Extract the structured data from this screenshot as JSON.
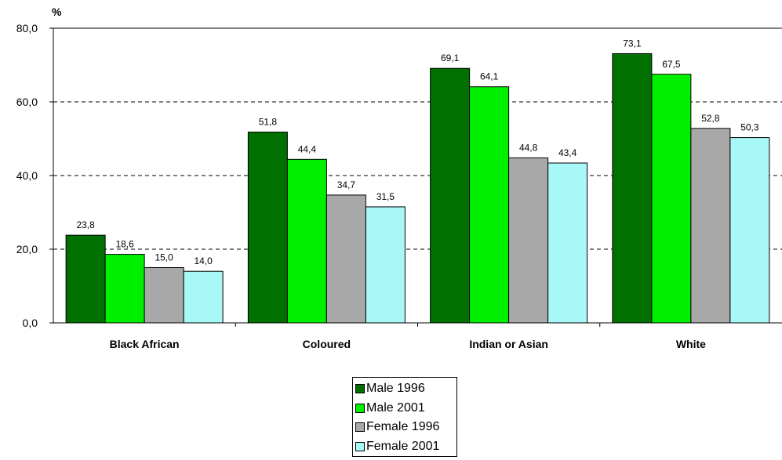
{
  "chart_data": {
    "type": "bar",
    "unit_label": "%",
    "categories": [
      "Black African",
      "Coloured",
      "Indian or Asian",
      "White"
    ],
    "series": [
      {
        "name": "Male 1996",
        "color": "#007000",
        "values": [
          23.8,
          51.8,
          69.1,
          73.1
        ],
        "labels": [
          "23,8",
          "51,8",
          "69,1",
          "73,1"
        ]
      },
      {
        "name": "Male 2001",
        "color": "#00f000",
        "values": [
          18.6,
          44.4,
          64.1,
          67.5
        ],
        "labels": [
          "18,6",
          "44,4",
          "64,1",
          "67,5"
        ]
      },
      {
        "name": "Female 1996",
        "color": "#a8a8a8",
        "values": [
          15.0,
          34.7,
          44.8,
          52.8
        ],
        "labels": [
          "15,0",
          "34,7",
          "44,8",
          "52,8"
        ]
      },
      {
        "name": "Female 2001",
        "color": "#a8f8f8",
        "values": [
          14.0,
          31.5,
          43.4,
          50.3
        ],
        "labels": [
          "14,0",
          "31,5",
          "43,4",
          "50,3"
        ]
      }
    ],
    "y_ticks": [
      0,
      20,
      40,
      60,
      80
    ],
    "y_tick_labels": [
      "0,0",
      "20,0",
      "40,0",
      "60,0",
      "80,0"
    ],
    "ylim": [
      0,
      80
    ],
    "grid": "dashed horizontal",
    "legend_position": "bottom-center"
  }
}
